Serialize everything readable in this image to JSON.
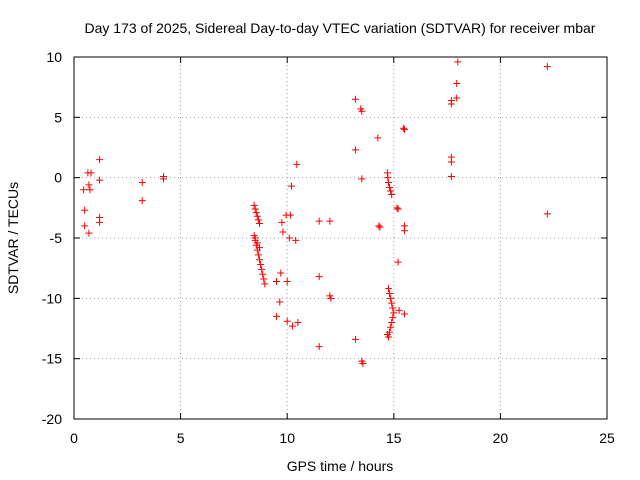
{
  "chart_data": {
    "type": "scatter",
    "title": "Day 173 of 2025, Sidereal Day-to-day VTEC variation (SDTVAR) for receiver mbar",
    "xlabel": "GPS time / hours",
    "ylabel": "SDTVAR / TECUs",
    "xlim": [
      0,
      25
    ],
    "ylim": [
      -20,
      10
    ],
    "xticks": [
      0,
      5,
      10,
      15,
      20,
      25
    ],
    "yticks": [
      -20,
      -15,
      -10,
      -5,
      0,
      5,
      10
    ],
    "grid": true,
    "marker": "+",
    "color": "#ff0000",
    "series": [
      {
        "name": "SDTVAR",
        "points": [
          [
            0.45,
            -1.0
          ],
          [
            0.5,
            -2.7
          ],
          [
            0.5,
            -4.0
          ],
          [
            0.65,
            0.4
          ],
          [
            0.7,
            -0.6
          ],
          [
            0.7,
            -4.6
          ],
          [
            0.75,
            -1.0
          ],
          [
            0.8,
            0.4
          ],
          [
            1.2,
            1.5
          ],
          [
            1.2,
            -0.2
          ],
          [
            1.2,
            -3.3
          ],
          [
            1.2,
            -3.7
          ],
          [
            3.2,
            -0.4
          ],
          [
            3.2,
            -1.9
          ],
          [
            4.2,
            0.1
          ],
          [
            4.2,
            -0.1
          ],
          [
            8.45,
            -2.3
          ],
          [
            8.5,
            -2.6
          ],
          [
            8.55,
            -2.9
          ],
          [
            8.6,
            -3.2
          ],
          [
            8.65,
            -3.5
          ],
          [
            8.7,
            -3.8
          ],
          [
            8.45,
            -4.8
          ],
          [
            8.5,
            -5.2
          ],
          [
            8.55,
            -5.6
          ],
          [
            8.6,
            -6.0
          ],
          [
            8.65,
            -6.4
          ],
          [
            8.7,
            -6.8
          ],
          [
            8.75,
            -7.2
          ],
          [
            8.8,
            -7.6
          ],
          [
            8.85,
            -8.0
          ],
          [
            8.9,
            -8.4
          ],
          [
            8.95,
            -8.8
          ],
          [
            8.5,
            -5.0
          ],
          [
            8.6,
            -5.4
          ],
          [
            8.7,
            -5.8
          ],
          [
            9.5,
            -8.6
          ],
          [
            9.5,
            -11.5
          ],
          [
            9.65,
            -10.3
          ],
          [
            9.7,
            -7.9
          ],
          [
            9.75,
            -3.7
          ],
          [
            9.8,
            -4.5
          ],
          [
            9.95,
            -3.1
          ],
          [
            10.0,
            -8.6
          ],
          [
            10.0,
            -11.9
          ],
          [
            10.1,
            -5.0
          ],
          [
            10.15,
            -3.1
          ],
          [
            10.2,
            -0.7
          ],
          [
            10.25,
            -12.3
          ],
          [
            10.4,
            -5.2
          ],
          [
            10.45,
            1.1
          ],
          [
            10.5,
            -12.0
          ],
          [
            11.5,
            -3.6
          ],
          [
            11.5,
            -8.2
          ],
          [
            11.5,
            -14.0
          ],
          [
            12.0,
            -3.6
          ],
          [
            12.0,
            -9.8
          ],
          [
            12.05,
            -10.0
          ],
          [
            13.2,
            6.5
          ],
          [
            13.2,
            2.3
          ],
          [
            13.2,
            -13.4
          ],
          [
            13.45,
            5.7
          ],
          [
            13.5,
            5.5
          ],
          [
            13.5,
            -0.1
          ],
          [
            13.5,
            -15.2
          ],
          [
            13.55,
            -15.4
          ],
          [
            14.25,
            3.3
          ],
          [
            14.3,
            -4.0
          ],
          [
            14.35,
            -4.1
          ],
          [
            14.7,
            0.4
          ],
          [
            14.72,
            0.0
          ],
          [
            14.75,
            -0.4
          ],
          [
            14.8,
            -0.8
          ],
          [
            14.85,
            -1.1
          ],
          [
            14.9,
            -1.4
          ],
          [
            14.75,
            -9.2
          ],
          [
            14.8,
            -9.6
          ],
          [
            14.85,
            -10.0
          ],
          [
            14.9,
            -10.4
          ],
          [
            14.95,
            -10.8
          ],
          [
            15.0,
            -11.2
          ],
          [
            14.95,
            -11.6
          ],
          [
            14.9,
            -12.0
          ],
          [
            14.85,
            -12.4
          ],
          [
            14.8,
            -12.8
          ],
          [
            14.75,
            -13.2
          ],
          [
            14.7,
            -13.0
          ],
          [
            15.15,
            -2.5
          ],
          [
            15.2,
            -2.6
          ],
          [
            15.2,
            -7.0
          ],
          [
            15.25,
            -11.0
          ],
          [
            15.45,
            4.1
          ],
          [
            15.5,
            4.0
          ],
          [
            15.5,
            -4.0
          ],
          [
            15.5,
            -4.4
          ],
          [
            15.5,
            -11.3
          ],
          [
            17.7,
            6.4
          ],
          [
            17.7,
            6.1
          ],
          [
            17.7,
            1.7
          ],
          [
            17.7,
            1.3
          ],
          [
            17.7,
            0.1
          ],
          [
            17.95,
            7.8
          ],
          [
            17.95,
            6.6
          ],
          [
            18.0,
            9.6
          ],
          [
            22.2,
            9.2
          ],
          [
            22.2,
            -3.0
          ]
        ]
      }
    ]
  }
}
